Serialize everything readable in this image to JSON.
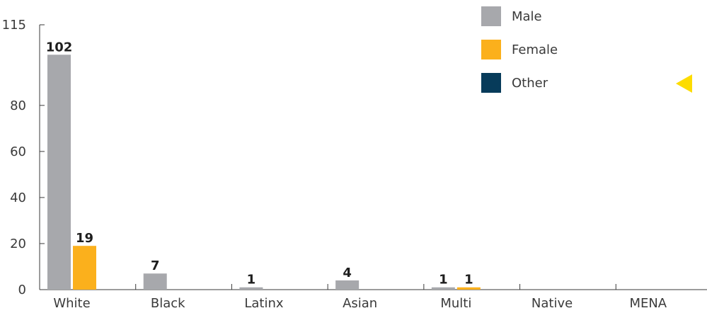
{
  "chart_data": {
    "type": "bar",
    "categories": [
      "White",
      "Black",
      "Latinx",
      "Asian",
      "Multi",
      "Native",
      "MENA"
    ],
    "series": [
      {
        "name": "Male",
        "color": "#a7a8ac",
        "values": [
          102,
          7,
          1,
          4,
          1,
          0,
          0
        ]
      },
      {
        "name": "Female",
        "color": "#fbb01c",
        "values": [
          19,
          0,
          0,
          0,
          1,
          0,
          0
        ]
      },
      {
        "name": "Other",
        "color": "#073b5a",
        "values": [
          0,
          0,
          0,
          0,
          0,
          0,
          0
        ]
      }
    ],
    "data_labels": [
      [
        "102",
        "7",
        "1",
        "4",
        "1",
        "",
        ""
      ],
      [
        "19",
        "",
        "",
        "",
        "1",
        "",
        ""
      ],
      [
        "",
        "",
        "",
        "",
        "",
        "",
        ""
      ]
    ],
    "ylim": [
      0,
      115
    ],
    "yticks": [
      0,
      20,
      40,
      60,
      80,
      115
    ],
    "grid": false,
    "legend_position": "top-right",
    "title": "",
    "xlabel": "",
    "ylabel": "",
    "marker": {
      "shape": "triangle-left",
      "color": "#fddc00"
    }
  }
}
